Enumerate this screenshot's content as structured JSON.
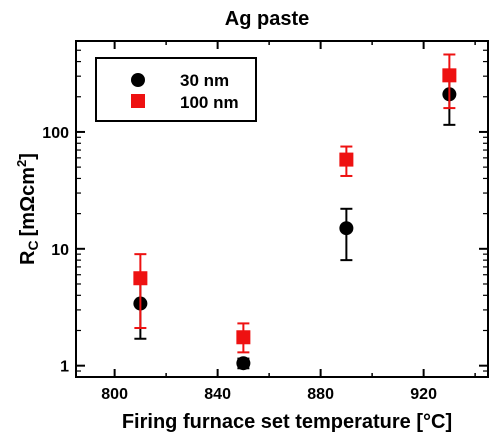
{
  "chart_data": {
    "type": "scatter",
    "title": "Ag paste",
    "xlabel": "Firing furnace set temperature [°C]",
    "ylabel_main": "R",
    "ylabel_sub": "C",
    "ylabel_units_pre": "[mΩcm",
    "ylabel_units_sup": "2",
    "ylabel_units_post": "]",
    "xlim": [
      785,
      945
    ],
    "ylim": [
      0.8,
      600
    ],
    "yscale": "log",
    "xticks": [
      800,
      840,
      880,
      920
    ],
    "xtick_labels": [
      "800",
      "840",
      "880",
      "920"
    ],
    "yticks": [
      1,
      10,
      100
    ],
    "ytick_labels": [
      "1",
      "10",
      "100"
    ],
    "legend": {
      "placement": "top-left"
    },
    "series": [
      {
        "name": "30 nm",
        "marker": "circle",
        "color": "#000000",
        "points": [
          {
            "x": 810,
            "y": 3.4,
            "yerr_low": 1.7,
            "yerr_high": 6.0
          },
          {
            "x": 850,
            "y": 1.05,
            "yerr_low": 0.95,
            "yerr_high": 1.15
          },
          {
            "x": 890,
            "y": 15,
            "yerr_low": 8,
            "yerr_high": 22
          },
          {
            "x": 930,
            "y": 210,
            "yerr_low": 115,
            "yerr_high": 280
          }
        ]
      },
      {
        "name": "100 nm",
        "marker": "square",
        "color": "#ee1111",
        "points": [
          {
            "x": 810,
            "y": 5.6,
            "yerr_low": 2.1,
            "yerr_high": 9.0
          },
          {
            "x": 850,
            "y": 1.75,
            "yerr_low": 1.3,
            "yerr_high": 2.3
          },
          {
            "x": 890,
            "y": 58,
            "yerr_low": 42,
            "yerr_high": 75
          },
          {
            "x": 930,
            "y": 305,
            "yerr_low": 160,
            "yerr_high": 460
          }
        ]
      }
    ]
  }
}
